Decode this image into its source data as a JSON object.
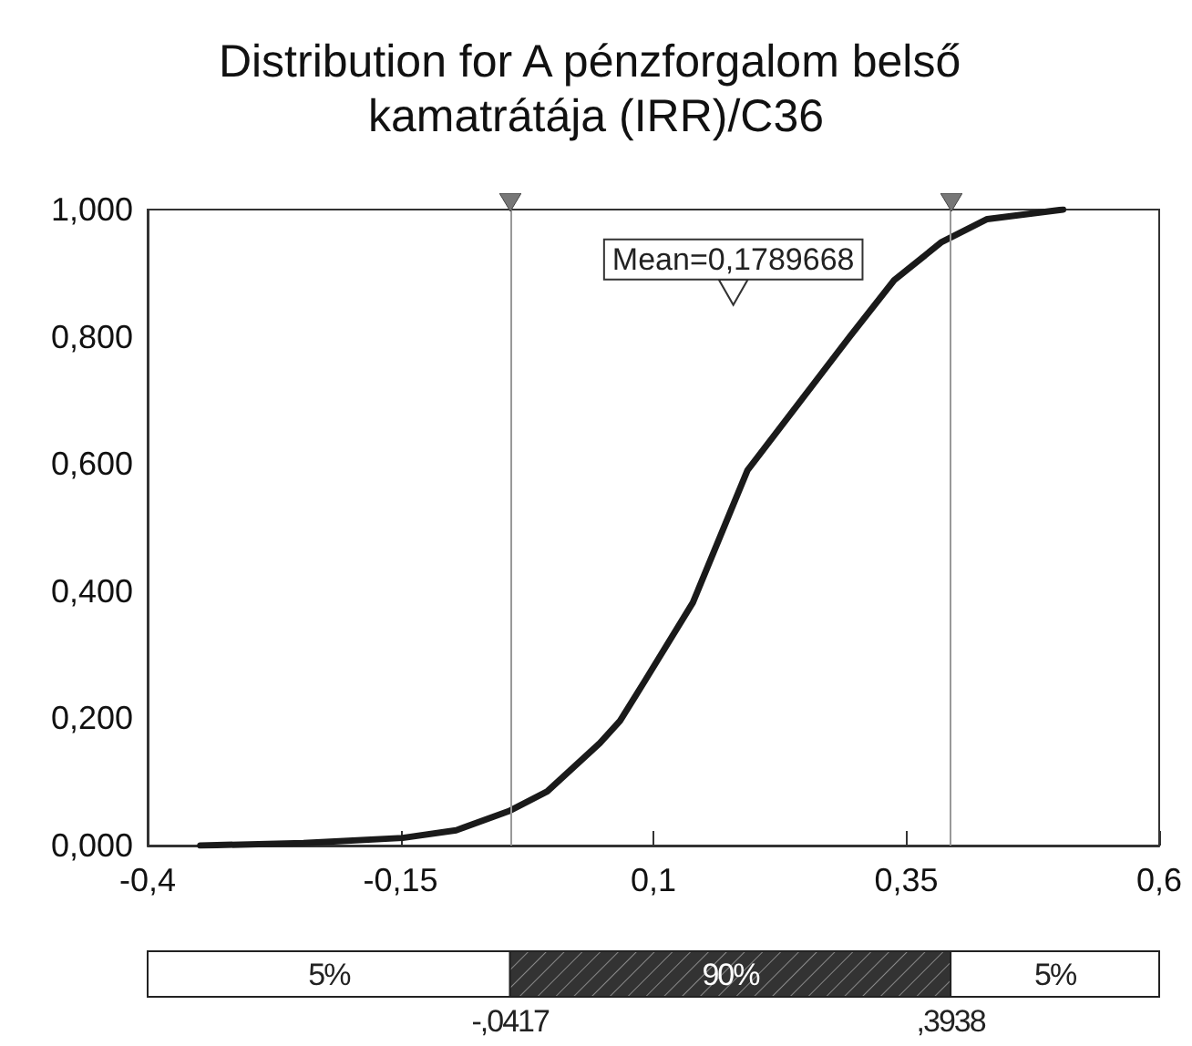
{
  "chart_data": {
    "type": "line",
    "title": "Distribution for A pénzforgalom belső kamatrátája (IRR)/C36",
    "x": [
      -0.348,
      -0.246,
      -0.148,
      -0.095,
      -0.043,
      -0.005,
      0.047,
      0.067,
      0.092,
      0.139,
      0.193,
      0.294,
      0.338,
      0.385,
      0.43,
      0.505
    ],
    "series": [
      {
        "color": "#1a1a1a",
        "values": [
          0,
          0.004,
          0.012,
          0.024,
          0.054,
          0.085,
          0.161,
          0.196,
          0.26,
          0.382,
          0.59,
          0.8,
          0.889,
          0.949,
          0.985,
          1.0
        ]
      }
    ],
    "xlim": [
      -0.4,
      0.6
    ],
    "xticks": [
      {
        "value": -0.4,
        "label": "-0,4"
      },
      {
        "value": -0.15,
        "label": "-0,15"
      },
      {
        "value": 0.1,
        "label": "0,1"
      },
      {
        "value": 0.35,
        "label": "0,35"
      },
      {
        "value": 0.6,
        "label": "0,6"
      }
    ],
    "ylim": [
      0,
      1
    ],
    "yticks": [
      {
        "value": 0,
        "label": "0,000"
      },
      {
        "value": 0.2,
        "label": "0,200"
      },
      {
        "value": 0.4,
        "label": "0,400"
      },
      {
        "value": 0.6,
        "label": "0,600"
      },
      {
        "value": 0.8,
        "label": "0,800"
      },
      {
        "value": 1,
        "label": "1,000"
      }
    ],
    "ref_lines": [
      {
        "axis": "x",
        "value": -0.0417,
        "color": "#999999"
      },
      {
        "axis": "x",
        "value": 0.3938,
        "color": "#999999"
      }
    ],
    "annotations": [
      {
        "text": "Mean=0,1789668",
        "x": 0.1789668,
        "y": 0.87
      },
      "5%",
      "90%",
      "5%",
      "-,0417",
      ",3938"
    ],
    "marker": "none",
    "line_style": "solid",
    "grid": false
  }
}
